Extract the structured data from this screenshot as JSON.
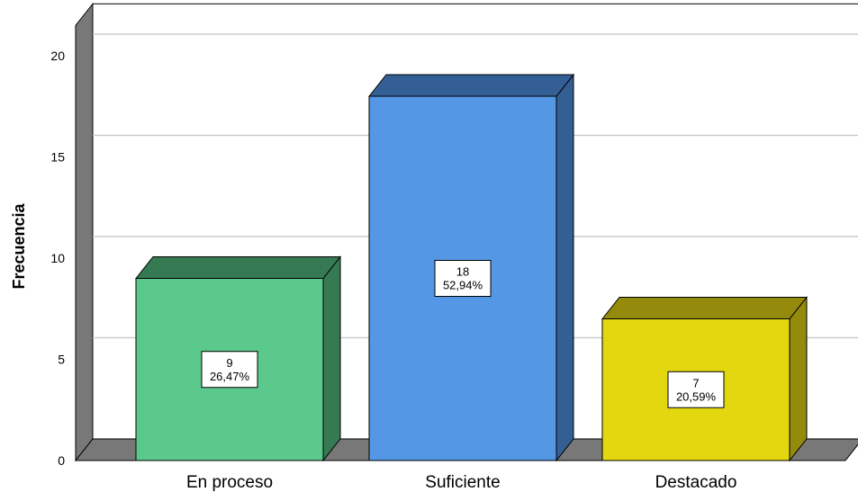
{
  "chart_data": {
    "type": "bar",
    "title": "",
    "xlabel": "",
    "ylabel": "Frecuencia",
    "ylim": [
      0,
      21.5
    ],
    "yticks": [
      0,
      5,
      10,
      15,
      20
    ],
    "grid": true,
    "categories": [
      "En proceso",
      "Suficiente",
      "Destacado"
    ],
    "values": [
      9,
      18,
      7
    ],
    "percent_labels": [
      "26,47%",
      "52,94%",
      "20,59%"
    ],
    "count_labels": [
      "9",
      "18",
      "7"
    ],
    "bar_colors": [
      {
        "front": "#5cc98c",
        "top": "#357a52",
        "side": "#357a52"
      },
      {
        "front": "#5497e5",
        "top": "#345f95",
        "side": "#345f95"
      },
      {
        "front": "#e3d710",
        "top": "#948a0b",
        "side": "#948a0b"
      }
    ],
    "wall_color": "#787878",
    "grid_color": "#cccccc"
  }
}
